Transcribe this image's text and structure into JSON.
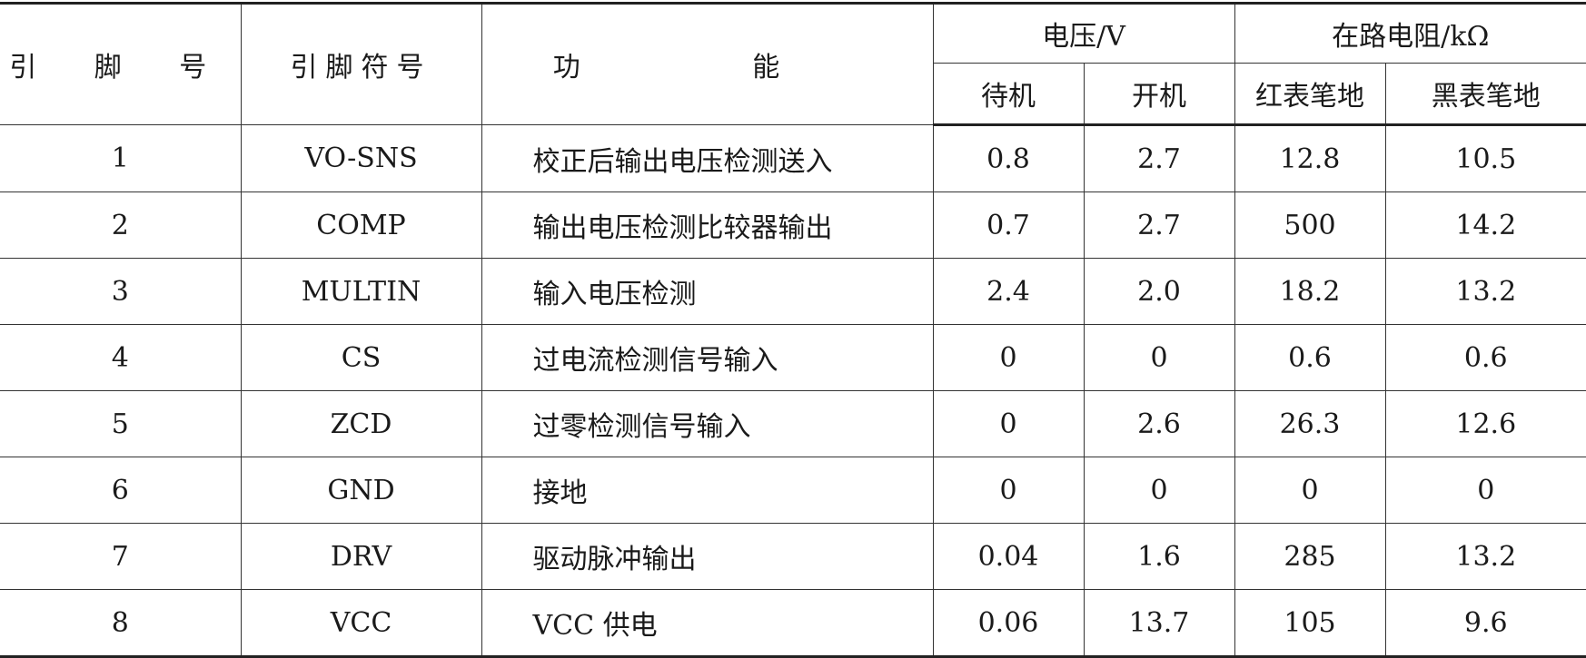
{
  "headers": {
    "pin_no": "引 脚 号",
    "pin_symbol": "引脚符号",
    "function": "功 能",
    "voltage": "电压/V",
    "resistance": "在路电阻/kΩ",
    "standby": "待机",
    "on": "开机",
    "red_ground": "红表笔地",
    "black_ground": "黑表笔地"
  },
  "rows": [
    {
      "pin": "1",
      "symbol": "VO-SNS",
      "function": "校正后输出电压检测送入",
      "standby": "0.8",
      "on": "2.7",
      "red": "12.8",
      "black": "10.5"
    },
    {
      "pin": "2",
      "symbol": "COMP",
      "function": "输出电压检测比较器输出",
      "standby": "0.7",
      "on": "2.7",
      "red": "500",
      "black": "14.2"
    },
    {
      "pin": "3",
      "symbol": "MULTIN",
      "function": "输入电压检测",
      "standby": "2.4",
      "on": "2.0",
      "red": "18.2",
      "black": "13.2"
    },
    {
      "pin": "4",
      "symbol": "CS",
      "function": "过电流检测信号输入",
      "standby": "0",
      "on": "0",
      "red": "0.6",
      "black": "0.6"
    },
    {
      "pin": "5",
      "symbol": "ZCD",
      "function": "过零检测信号输入",
      "standby": "0",
      "on": "2.6",
      "red": "26.3",
      "black": "12.6"
    },
    {
      "pin": "6",
      "symbol": "GND",
      "function": "接地",
      "standby": "0",
      "on": "0",
      "red": "0",
      "black": "0"
    },
    {
      "pin": "7",
      "symbol": "DRV",
      "function": "驱动脉冲输出",
      "standby": "0.04",
      "on": "1.6",
      "red": "285",
      "black": "13.2"
    },
    {
      "pin": "8",
      "symbol": "VCC",
      "function": "VCC 供电",
      "standby": "0.06",
      "on": "13.7",
      "red": "105",
      "black": "9.6"
    }
  ]
}
